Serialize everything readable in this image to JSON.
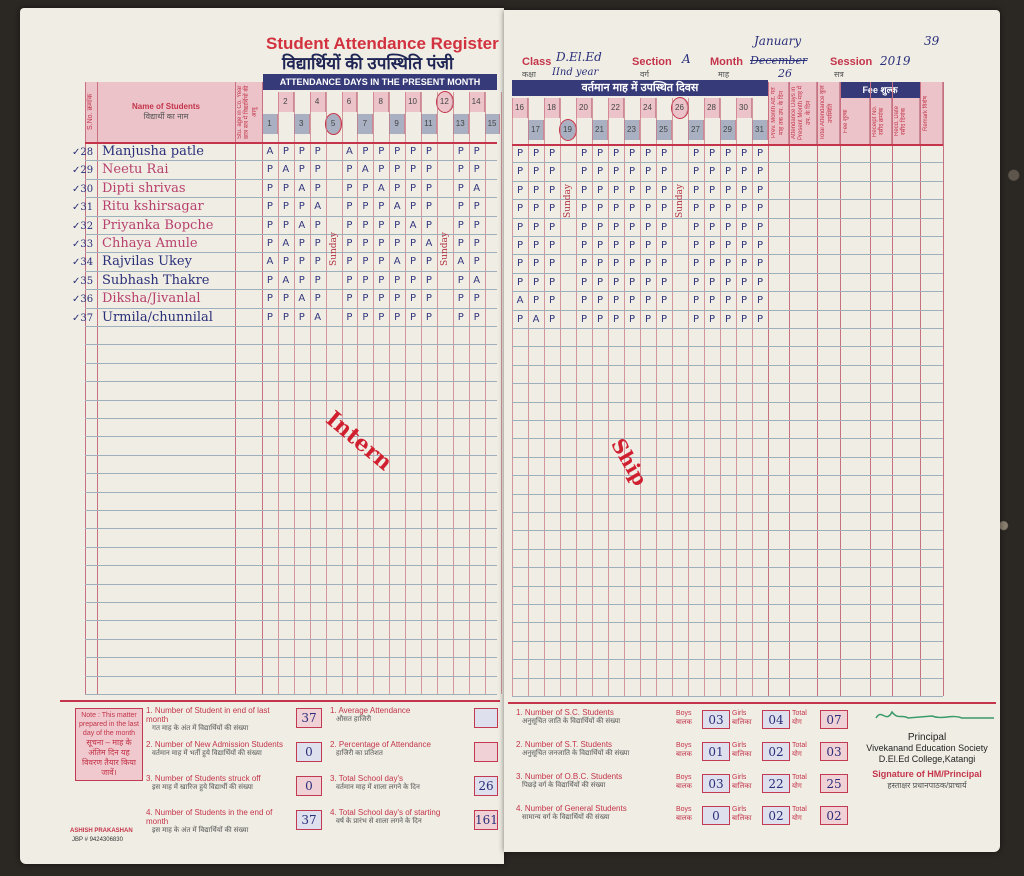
{
  "left_page": {
    "title": "Student Attendance Register",
    "title_hindi": "विद्यार्थियों की उपस्थिति पंजी",
    "band": "ATTENDANCE DAYS IN THE PRESENT MONTH",
    "col_sno": "S.No. क्रमांक",
    "col_name": "Name of Students",
    "col_name_hindi": "विद्यार्थी का नाम",
    "col_age": "Stu. age in Co. Year छात्र सत्र में विद्यार्थियों की आयु",
    "days": [
      "1",
      "2",
      "3",
      "4",
      "5",
      "6",
      "7",
      "8",
      "9",
      "10",
      "11",
      "12",
      "13",
      "14",
      "15"
    ],
    "circled_days": [
      "5",
      "12"
    ],
    "students": [
      {
        "sno": "✓28",
        "name": "Manjusha patle",
        "red": false,
        "marks": [
          "A",
          "P",
          "P",
          "P",
          "",
          "A",
          "P",
          "P",
          "P",
          "P",
          "P",
          "",
          "P",
          "P",
          ""
        ]
      },
      {
        "sno": "✓29",
        "name": "Neetu Rai",
        "red": true,
        "marks": [
          "P",
          "A",
          "P",
          "P",
          "",
          "P",
          "A",
          "P",
          "P",
          "P",
          "P",
          "",
          "P",
          "P",
          ""
        ]
      },
      {
        "sno": "✓30",
        "name": "Dipti shrivas",
        "red": true,
        "marks": [
          "P",
          "P",
          "A",
          "P",
          "",
          "P",
          "P",
          "A",
          "P",
          "P",
          "P",
          "",
          "P",
          "A",
          ""
        ]
      },
      {
        "sno": "✓31",
        "name": "Ritu kshirsagar",
        "red": true,
        "marks": [
          "P",
          "P",
          "P",
          "A",
          "",
          "P",
          "P",
          "P",
          "A",
          "P",
          "P",
          "",
          "P",
          "P",
          ""
        ]
      },
      {
        "sno": "✓32",
        "name": "Priyanka Bopche",
        "red": true,
        "marks": [
          "P",
          "P",
          "A",
          "P",
          "",
          "P",
          "P",
          "P",
          "P",
          "A",
          "P",
          "",
          "P",
          "P",
          ""
        ]
      },
      {
        "sno": "✓33",
        "name": "Chhaya Amule",
        "red": true,
        "marks": [
          "P",
          "A",
          "P",
          "P",
          "",
          "P",
          "P",
          "P",
          "P",
          "P",
          "A",
          "",
          "P",
          "P",
          ""
        ]
      },
      {
        "sno": "✓34",
        "name": "Rajvilas Ukey",
        "red": false,
        "marks": [
          "A",
          "P",
          "P",
          "P",
          "",
          "P",
          "P",
          "P",
          "A",
          "P",
          "P",
          "",
          "A",
          "P",
          ""
        ]
      },
      {
        "sno": "✓35",
        "name": "Subhash Thakre",
        "red": false,
        "marks": [
          "P",
          "A",
          "P",
          "P",
          "",
          "P",
          "P",
          "P",
          "P",
          "P",
          "P",
          "",
          "P",
          "A",
          ""
        ]
      },
      {
        "sno": "✓36",
        "name": "Diksha/Jivanlal",
        "red": true,
        "marks": [
          "P",
          "P",
          "A",
          "P",
          "",
          "P",
          "P",
          "P",
          "P",
          "P",
          "P",
          "",
          "P",
          "P",
          ""
        ]
      },
      {
        "sno": "✓37",
        "name": "Urmila/chunnilal",
        "red": false,
        "marks": [
          "P",
          "P",
          "P",
          "A",
          "",
          "P",
          "P",
          "P",
          "P",
          "P",
          "P",
          "",
          "P",
          "P",
          ""
        ]
      }
    ],
    "annotation_intern": "Intern",
    "sunday_label": "Sunday",
    "note": "Note : This matter prepared in the last day of the month",
    "note_hindi": "सूचना – माह के अंतिम दिन यह विवरण तैयार किया जावें।",
    "publisher": "ASHISH PRAKASHAN",
    "publisher_phone": "JBP # 9424306830",
    "summary": [
      {
        "label": "1. Number of Student in end of last month",
        "hindi": "गत माह के अंत में विद्यार्थियों की संख्या",
        "value": "37"
      },
      {
        "label": "2. Number of New Admission Students",
        "hindi": "वर्तमान माह में भर्ती हुये विद्यार्थियों की संख्या",
        "value": "0"
      },
      {
        "label": "3. Number of Students struck off",
        "hindi": "इस माह में खारिज हुये विद्यार्थी की संख्या",
        "value": "0"
      },
      {
        "label": "4. Number of Students in the end of month",
        "hindi": "इस माह के अंत में विद्यार्थियों की संख्या",
        "value": "37"
      }
    ],
    "summary2": [
      {
        "label": "1. Average Attendance",
        "hindi": "औसत हाजिरी",
        "value": ""
      },
      {
        "label": "2. Percentage of Attendance",
        "hindi": "हाजिरी का प्रतिशत",
        "value": ""
      },
      {
        "label": "3. Total School day's",
        "hindi": "वर्तमान माह में शाला लगने के दिन",
        "value": "26"
      },
      {
        "label": "4. Total School day's of starting",
        "hindi": "वर्ष के प्रारंभ से शाला लगने के दिन",
        "value": "161"
      }
    ]
  },
  "right_page": {
    "class_label": "Class",
    "class_value": "D.El.Ed",
    "class_hindi": "कक्षा",
    "class_year": "IInd year",
    "section_label": "Section",
    "section_value": "A",
    "section_hindi": "वर्ग",
    "month_label": "Month",
    "month_value": "December",
    "month_value_new": "January",
    "month_hindi": "माह",
    "month_days": "26",
    "session_label": "Session",
    "session_value": "2019",
    "session_hindi": "सत्र",
    "page_number": "39",
    "band": "वर्तमान माह में उपस्थित दिवस",
    "days": [
      "16",
      "17",
      "18",
      "19",
      "20",
      "21",
      "22",
      "23",
      "24",
      "25",
      "26",
      "27",
      "28",
      "29",
      "30",
      "31"
    ],
    "circled_days": [
      "19",
      "26"
    ],
    "extra_cols": [
      "Prev. Month Att. गत माह तक उप. के दिन",
      "Attendance Days in Present Month माह में उप. के दिन",
      "Total Attendance कुल उपस्थिति",
      "Fee शुल्क",
      "Receipt No. रसीद क्रमांक",
      "Recd. Date रसीद दिनांक",
      "Remark विशेष"
    ],
    "fee_header": "Fee शुल्क",
    "marks": [
      [
        "P",
        "P",
        "P",
        "",
        "P",
        "P",
        "P",
        "P",
        "P",
        "P",
        "",
        "P",
        "P",
        "P",
        "P",
        "P"
      ],
      [
        "P",
        "P",
        "P",
        "",
        "P",
        "P",
        "P",
        "P",
        "P",
        "P",
        "",
        "P",
        "P",
        "P",
        "P",
        "P"
      ],
      [
        "P",
        "P",
        "P",
        "",
        "P",
        "P",
        "P",
        "P",
        "P",
        "P",
        "",
        "P",
        "P",
        "P",
        "P",
        "P"
      ],
      [
        "P",
        "P",
        "P",
        "",
        "P",
        "P",
        "P",
        "P",
        "P",
        "P",
        "",
        "P",
        "P",
        "P",
        "P",
        "P"
      ],
      [
        "P",
        "P",
        "P",
        "",
        "P",
        "P",
        "P",
        "P",
        "P",
        "P",
        "",
        "P",
        "P",
        "P",
        "P",
        "P"
      ],
      [
        "P",
        "P",
        "P",
        "",
        "P",
        "P",
        "P",
        "P",
        "P",
        "P",
        "",
        "P",
        "P",
        "P",
        "P",
        "P"
      ],
      [
        "P",
        "P",
        "P",
        "",
        "P",
        "P",
        "P",
        "P",
        "P",
        "P",
        "",
        "P",
        "P",
        "P",
        "P",
        "P"
      ],
      [
        "P",
        "P",
        "P",
        "",
        "P",
        "P",
        "P",
        "P",
        "P",
        "P",
        "",
        "P",
        "P",
        "P",
        "P",
        "P"
      ],
      [
        "A",
        "P",
        "P",
        "",
        "P",
        "P",
        "P",
        "P",
        "P",
        "P",
        "",
        "P",
        "P",
        "P",
        "P",
        "P"
      ],
      [
        "P",
        "A",
        "P",
        "",
        "P",
        "P",
        "P",
        "P",
        "P",
        "P",
        "",
        "P",
        "P",
        "P",
        "P",
        "P"
      ]
    ],
    "annotation_ship": "Ship",
    "sunday_label": "Sunday",
    "categories": [
      {
        "label": "1. Number of S.C. Students",
        "hindi": "अनुसूचित जाति के विद्यार्थियों की संख्या",
        "boys": "03",
        "girls": "04",
        "total": "07"
      },
      {
        "label": "2. Number of S.T. Students",
        "hindi": "अनुसूचित जनजाति के विद्यार्थियों की संख्या",
        "boys": "01",
        "girls": "02",
        "total": "03"
      },
      {
        "label": "3. Number of O.B.C. Students",
        "hindi": "पिछड़े वर्ग के विद्यार्थियों की संख्या",
        "boys": "03",
        "girls": "22",
        "total": "25"
      },
      {
        "label": "4. Number of General Students",
        "hindi": "सामान्य वर्ग के विद्यार्थियों की संख्या",
        "boys": "0",
        "girls": "02",
        "total": "02"
      }
    ],
    "boys_label": "Boys बालक",
    "girls_label": "Girls बालिका",
    "total_label": "Total योग",
    "principal": "Principal",
    "society": "Vivekanand Education Society",
    "college": "D.El.Ed College,Katangi",
    "signature_label": "Signature of HM/Principal",
    "signature_hindi": "हस्ताक्षर प्रधानपाठक/प्राचार्य"
  },
  "colors": {
    "red_ink": "#c4344a",
    "blue_band": "#363a78",
    "pen": "#2a2f7a",
    "paper": "#f0eee4"
  }
}
